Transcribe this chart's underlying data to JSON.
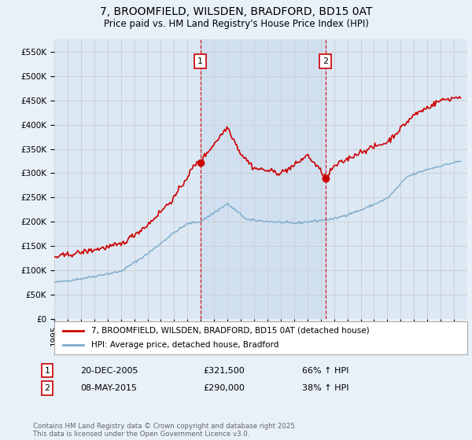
{
  "title": "7, BROOMFIELD, WILSDEN, BRADFORD, BD15 0AT",
  "subtitle": "Price paid vs. HM Land Registry's House Price Index (HPI)",
  "ylim": [
    0,
    575000
  ],
  "yticks": [
    0,
    50000,
    100000,
    150000,
    200000,
    250000,
    300000,
    350000,
    400000,
    450000,
    500000,
    550000
  ],
  "ytick_labels": [
    "£0",
    "£50K",
    "£100K",
    "£150K",
    "£200K",
    "£250K",
    "£300K",
    "£350K",
    "£400K",
    "£450K",
    "£500K",
    "£550K"
  ],
  "xlim_start": 1995,
  "xlim_end": 2026,
  "xticks": [
    1995,
    1996,
    1997,
    1998,
    1999,
    2000,
    2001,
    2002,
    2003,
    2004,
    2005,
    2006,
    2007,
    2008,
    2009,
    2010,
    2011,
    2012,
    2013,
    2014,
    2015,
    2016,
    2017,
    2018,
    2019,
    2020,
    2021,
    2022,
    2023,
    2024,
    2025
  ],
  "sale1_x": 2005.97,
  "sale1_y": 321500,
  "sale2_x": 2015.36,
  "sale2_y": 290000,
  "sale1_date": "20-DEC-2005",
  "sale1_price": "£321,500",
  "sale1_hpi": "66% ↑ HPI",
  "sale2_date": "08-MAY-2015",
  "sale2_price": "£290,000",
  "sale2_hpi": "38% ↑ HPI",
  "red_line_color": "#cc0000",
  "blue_line_color": "#7aaacc",
  "vline_color": "#cc0000",
  "shade_color": "#ccddf0",
  "grid_color": "#cccccc",
  "bg_color": "#e8f0f8",
  "plot_bg_color": "#dce8f4",
  "legend_label_red": "7, BROOMFIELD, WILSDEN, BRADFORD, BD15 0AT (detached house)",
  "legend_label_blue": "HPI: Average price, detached house, Bradford",
  "footer": "Contains HM Land Registry data © Crown copyright and database right 2025.\nThis data is licensed under the Open Government Licence v3.0.",
  "title_fontsize": 10,
  "subtitle_fontsize": 8.5,
  "tick_fontsize": 7.5,
  "legend_fontsize": 7.5
}
